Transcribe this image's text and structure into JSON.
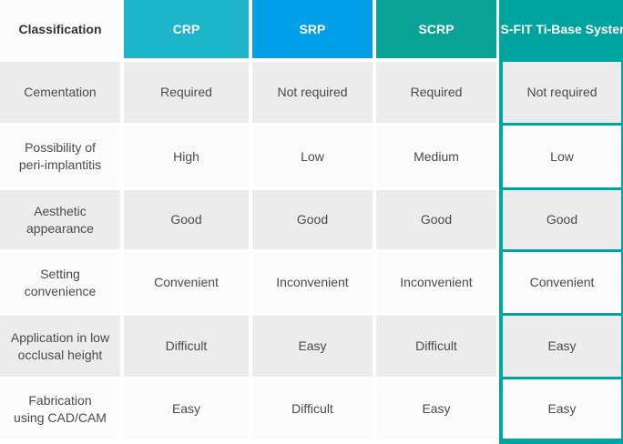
{
  "chart_data": {
    "type": "table",
    "corner_header": "Classification",
    "columns": [
      "CRP",
      "SRP",
      "SCRP",
      "S-FIT Ti-Base System"
    ],
    "highlighted_column": "S-FIT Ti-Base System",
    "rows": [
      {
        "label": "Cementation",
        "values": [
          "Required",
          "Not required",
          "Required",
          "Not required"
        ]
      },
      {
        "label": "Possibility of\nperi-implantitis",
        "values": [
          "High",
          "Low",
          "Medium",
          "Low"
        ]
      },
      {
        "label": "Aesthetic\nappearance",
        "values": [
          "Good",
          "Good",
          "Good",
          "Good"
        ]
      },
      {
        "label": "Setting\nconvenience",
        "values": [
          "Convenient",
          "Inconvenient",
          "Inconvenient",
          "Convenient"
        ]
      },
      {
        "label": "Application in low\nocclusal height",
        "values": [
          "Difficult",
          "Easy",
          "Difficult",
          "Easy"
        ]
      },
      {
        "label": "Fabrication\nusing CAD/CAM",
        "values": [
          "Easy",
          "Difficult",
          "Easy",
          "Easy"
        ]
      }
    ],
    "layout": {
      "grid": "off",
      "column_gutters": "white",
      "highlight_style": "teal frame around last column"
    }
  },
  "colors": {
    "crp": "#1CB4C8",
    "srp": "#009FE8",
    "scrp": "#0AA398",
    "highlight": "#00A49E",
    "row_shade": "#ECECEC",
    "row_light": "#FBFBFB",
    "header_text": "#FFFFFF",
    "classification_text": "#333333",
    "cell_text": "#4A4A4A"
  }
}
